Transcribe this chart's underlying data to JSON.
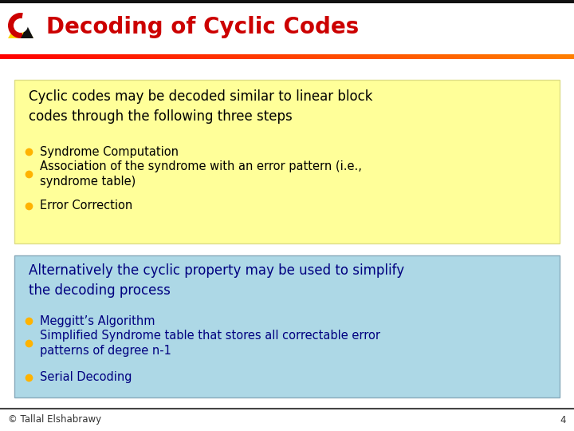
{
  "title": "Decoding of Cyclic Codes",
  "title_color": "#CC0000",
  "title_fontsize": 20,
  "bg_color": "#FFFFFF",
  "box1_bg": "#FFFF99",
  "box1_text_main": "Cyclic codes may be decoded similar to linear block\ncodes through the following three steps",
  "box1_text_color": "#000000",
  "box1_bullets": [
    "Syndrome Computation",
    "Association of the syndrome with an error pattern (i.e.,\nsyndrome table)",
    "Error Correction"
  ],
  "box1_bullet_color": "#FFB300",
  "box2_bg": "#ADD8E6",
  "box2_text_main": "Alternatively the cyclic property may be used to simplify\nthe decoding process",
  "box2_text_color": "#000080",
  "box2_bullets": [
    "Meggitt’s Algorithm",
    "Simplified Syndrome table that stores all correctable error\npatterns of degree n-1",
    "Serial Decoding"
  ],
  "box2_bullet_color": "#FFB300",
  "footer_text": "© Tallal Elshabrawy",
  "footer_number": "4",
  "footer_color": "#333333",
  "top_bar_color": "#222222",
  "red_bar_color": "#CC0000"
}
